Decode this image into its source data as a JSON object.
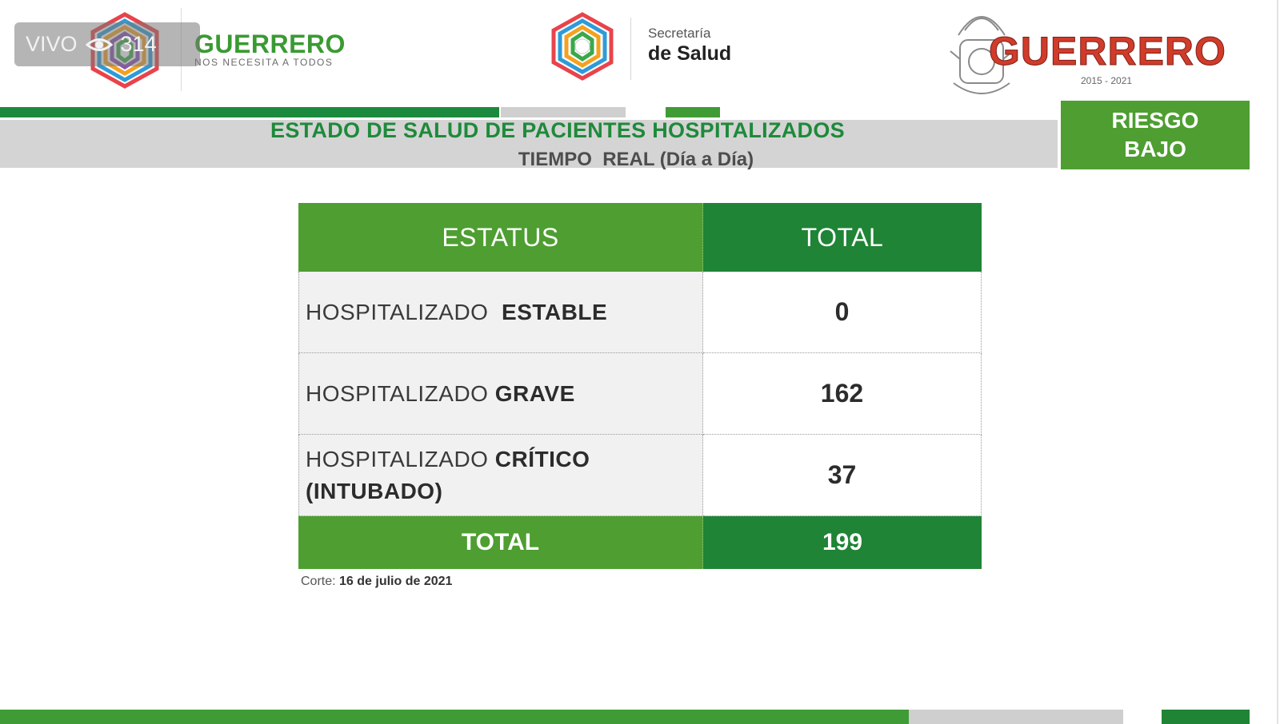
{
  "overlay": {
    "live_label": "VIVO",
    "viewer_count": "314",
    "icon": "eye-icon"
  },
  "header": {
    "left_logo": {
      "name": "GUERRERO",
      "tagline": "NOS NECESITA A TODOS"
    },
    "center_logo": {
      "line1": "Secretaría",
      "line2": "de Salud"
    },
    "right_logo": {
      "name": "GUERRERO",
      "years": "2015 - 2021"
    }
  },
  "title": {
    "main": "ESTADO DE SALUD DE PACIENTES HOSPITALIZADOS",
    "sub": "TIEMPO  REAL (Día a Día)"
  },
  "risk_badge": {
    "line1": "RIESGO",
    "line2": "BAJO"
  },
  "table": {
    "headers": {
      "status": "ESTATUS",
      "total": "TOTAL"
    },
    "rows": [
      {
        "label_prefix": "HOSPITALIZADO  ",
        "label_strong": "ESTABLE",
        "label_extra": "",
        "value": "0"
      },
      {
        "label_prefix": "HOSPITALIZADO ",
        "label_strong": "GRAVE",
        "label_extra": "",
        "value": "162"
      },
      {
        "label_prefix": "HOSPITALIZADO ",
        "label_strong": "CRÍTICO",
        "label_extra": "(INTUBADO)",
        "value": "37"
      }
    ],
    "footer": {
      "label": "TOTAL",
      "value": "199"
    }
  },
  "cutoff": {
    "label": "Corte:",
    "date": "16 de julio de 2021"
  },
  "colors": {
    "green_primary": "#4e9e31",
    "green_dark": "#1f8435",
    "title_green": "#1e8a3a",
    "band_gray": "#d4d4d4"
  }
}
